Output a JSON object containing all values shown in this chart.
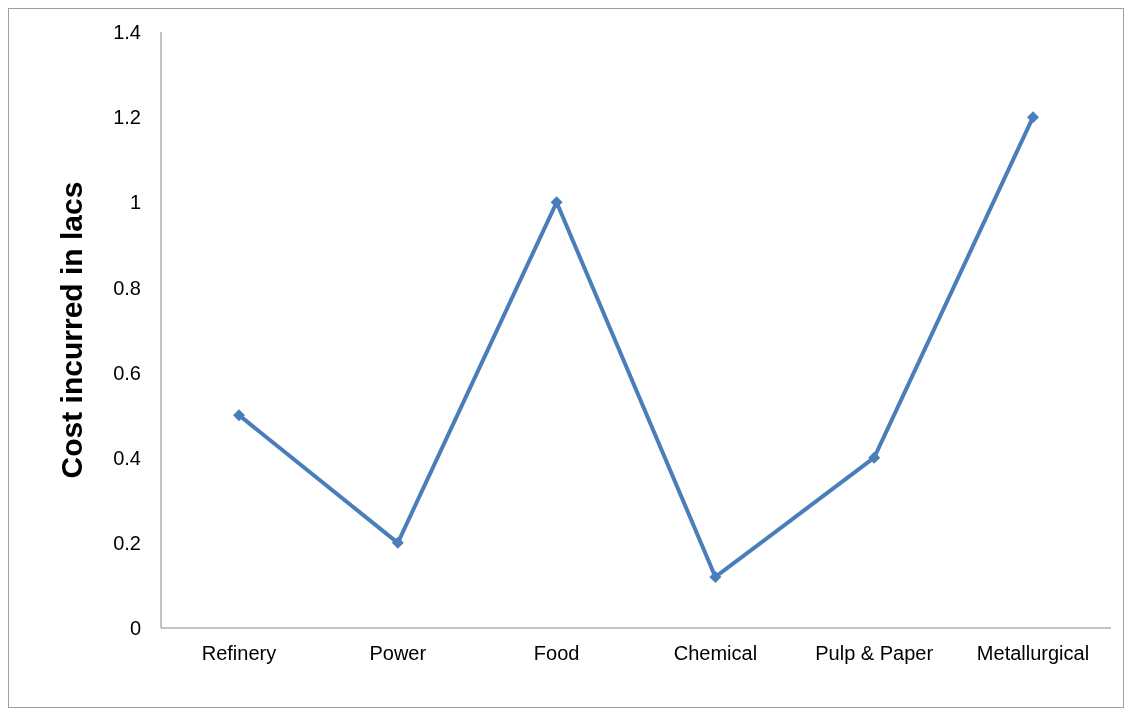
{
  "chart_data": {
    "type": "line",
    "ylabel": "Cost incurred in lacs",
    "categories": [
      "Refinery",
      "Power",
      "Food",
      "Chemical",
      "Pulp & Paper",
      "Metallurgical"
    ],
    "series": [
      {
        "color": "#4a7ebb",
        "values": [
          0.5,
          0.2,
          1.0,
          0.12,
          0.4,
          1.2
        ]
      }
    ],
    "ylim": [
      0,
      1.4
    ],
    "yticks": [
      0,
      0.2,
      0.4,
      0.6,
      0.8,
      1,
      1.2,
      1.4
    ],
    "grid": false,
    "legend": false,
    "marker": "diamond",
    "line_style": "solid"
  }
}
